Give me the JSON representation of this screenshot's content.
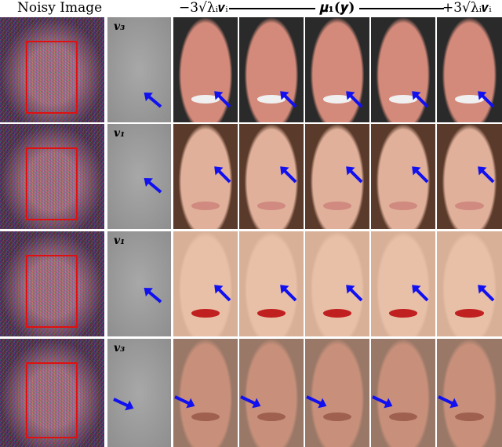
{
  "header": {
    "noisy": "Noisy Image",
    "left": "−3√λᵢ𝒗ᵢ",
    "center": "𝝁₁(𝒚)",
    "right": "+3√λᵢ𝒗ᵢ"
  },
  "rows": [
    {
      "vector_label": "𝒗₃",
      "skin": "#d48a7a",
      "bg": "#2a2a2a",
      "mouth": "#f0f0f0"
    },
    {
      "vector_label": "𝒗₁",
      "skin": "#e0b09a",
      "bg": "#5a3a2a",
      "mouth": "#d08a80"
    },
    {
      "vector_label": "𝒗₁",
      "skin": "#e8c0a8",
      "bg": "#d8b098",
      "mouth": "#c02020"
    },
    {
      "vector_label": "𝒗₃",
      "skin": "#c8907a",
      "bg": "#9a7868",
      "mouth": "#a06050"
    }
  ],
  "colors": {
    "box": "#e01010",
    "arrow": "#1010f0"
  }
}
